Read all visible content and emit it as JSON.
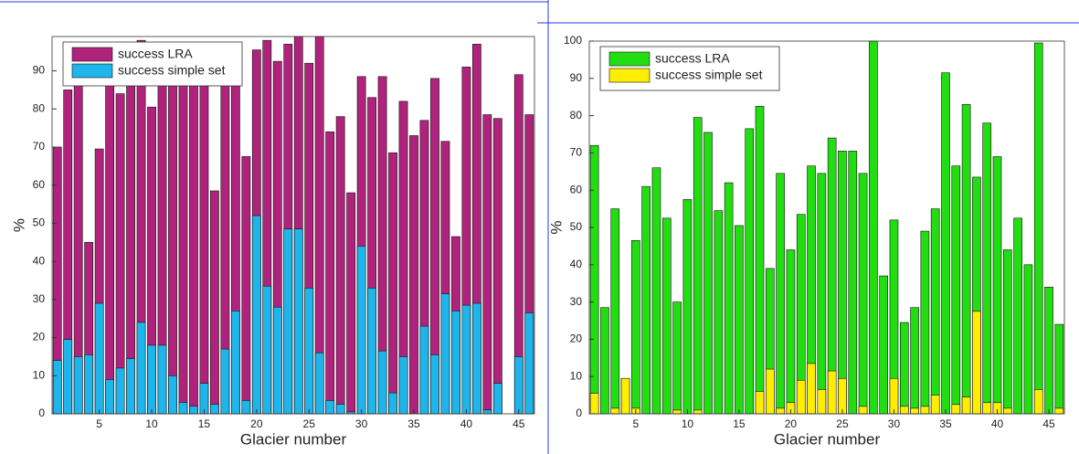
{
  "chart_data": [
    {
      "type": "bar",
      "ylabel": "%",
      "xlabel": "Glacier number",
      "x": [
        1,
        2,
        3,
        4,
        5,
        6,
        7,
        8,
        9,
        10,
        11,
        12,
        13,
        14,
        15,
        16,
        17,
        18,
        19,
        20,
        21,
        22,
        23,
        24,
        25,
        26,
        27,
        28,
        29,
        30,
        31,
        32,
        33,
        34,
        35,
        36,
        37,
        38,
        39,
        40,
        41,
        42,
        43,
        44,
        45,
        46
      ],
      "xlim": [
        0.5,
        46.5
      ],
      "xticks": [
        5,
        10,
        15,
        20,
        25,
        30,
        35,
        40,
        45
      ],
      "ylim": [
        0,
        99
      ],
      "yticks": [
        0,
        10,
        20,
        30,
        40,
        50,
        60,
        70,
        80,
        90
      ],
      "legend": "north-west",
      "series": [
        {
          "name": "success LRA",
          "color": "#b0237c",
          "values": [
            70,
            85,
            87,
            45,
            69.5,
            88,
            84,
            87,
            98,
            80.5,
            87,
            87,
            91,
            93,
            88,
            58.5,
            90,
            87,
            67.5,
            95.5,
            98,
            92.5,
            97,
            99,
            92,
            99,
            74,
            78,
            58,
            88.5,
            83,
            88.5,
            68.5,
            82,
            73,
            77,
            88,
            71.5,
            46.5,
            91,
            97,
            78.5,
            77.5,
            0,
            89,
            78.5
          ]
        },
        {
          "name": "success simple set",
          "color": "#1fb4ea",
          "values": [
            14,
            19.5,
            15,
            15.5,
            29,
            9,
            12,
            14.5,
            24,
            18,
            18,
            10,
            3,
            2,
            8,
            2.5,
            17,
            27,
            3.5,
            52,
            33.5,
            28,
            48.5,
            48.5,
            33,
            16,
            3.5,
            2.5,
            0.5,
            44,
            33,
            16.5,
            5.5,
            15,
            0,
            23,
            15.5,
            31.5,
            27,
            28.5,
            29,
            1,
            8,
            0,
            15,
            26.5
          ]
        }
      ]
    },
    {
      "type": "bar",
      "ylabel": "%",
      "xlabel": "Glacier number",
      "x": [
        1,
        2,
        3,
        4,
        5,
        6,
        7,
        8,
        9,
        10,
        11,
        12,
        13,
        14,
        15,
        16,
        17,
        18,
        19,
        20,
        21,
        22,
        23,
        24,
        25,
        26,
        27,
        28,
        29,
        30,
        31,
        32,
        33,
        34,
        35,
        36,
        37,
        38,
        39,
        40,
        41,
        42,
        43,
        44,
        45,
        46
      ],
      "xlim": [
        0.5,
        46.5
      ],
      "xticks": [
        5,
        10,
        15,
        20,
        25,
        30,
        35,
        40,
        45
      ],
      "ylim": [
        0,
        100
      ],
      "yticks": [
        0,
        10,
        20,
        30,
        40,
        50,
        60,
        70,
        80,
        90,
        100
      ],
      "legend": "north-west",
      "series": [
        {
          "name": "success LRA",
          "color": "#22dd11",
          "values": [
            72,
            28.5,
            55,
            9.5,
            46.5,
            61,
            66,
            52.5,
            30,
            57.5,
            79.5,
            75.5,
            54.5,
            62,
            50.5,
            76.5,
            82.5,
            39,
            64.5,
            44,
            53.5,
            66.5,
            64.5,
            74,
            70.5,
            70.5,
            64.5,
            100,
            37,
            52,
            24.5,
            28.5,
            49,
            55,
            91.5,
            66.5,
            83,
            63.5,
            78,
            69,
            44,
            52.5,
            40,
            99.5,
            34,
            24
          ]
        },
        {
          "name": "success simple set",
          "color": "#ffee00",
          "values": [
            5.5,
            0,
            1.5,
            9.5,
            1.5,
            0,
            0,
            0,
            1,
            0,
            1,
            0,
            0,
            0,
            0,
            0,
            6,
            12,
            1.5,
            3,
            9,
            13.5,
            6.5,
            11.5,
            9.5,
            0,
            2,
            0,
            0,
            9.5,
            2,
            1.5,
            2,
            5,
            0,
            2.5,
            4.5,
            27.5,
            3,
            3,
            1.5,
            0,
            0,
            6.5,
            0,
            1.5
          ]
        }
      ]
    }
  ]
}
